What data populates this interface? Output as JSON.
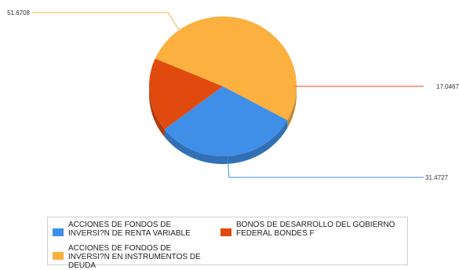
{
  "chart_data": {
    "type": "pie",
    "title": "",
    "slices": [
      {
        "label": "ACCIONES DE FONDOS DE INVERSI?N EN INSTRUMENTOS DE DEUDA",
        "value": 51.6708,
        "value_label": "51.6708",
        "color": "#fbb040"
      },
      {
        "label": "BONOS DE DESARROLLO DEL GOBIERNO FEDERAL BONDES F",
        "value": 17.0467,
        "value_label": "17.0467",
        "color": "#e04a0e"
      },
      {
        "label": "ACCIONES DE FONDOS DE INVERSI?N DE RENTA VARIABLE",
        "value": 31.4727,
        "value_label": "31.4727",
        "color": "#3f8fe8"
      }
    ],
    "legend_position": "bottom",
    "three_d": true
  },
  "legend": {
    "items": [
      {
        "label": "ACCIONES DE FONDOS DE INVERSI?N DE RENTA VARIABLE",
        "color": "#3f8fe8"
      },
      {
        "label": "BONOS DE DESARROLLO DEL GOBIERNO FEDERAL BONDES F",
        "color": "#e04a0e"
      },
      {
        "label": "ACCIONES DE FONDOS DE INVERSI?N EN INSTRUMENTOS DE DEUDA",
        "color": "#fbb040"
      }
    ]
  }
}
